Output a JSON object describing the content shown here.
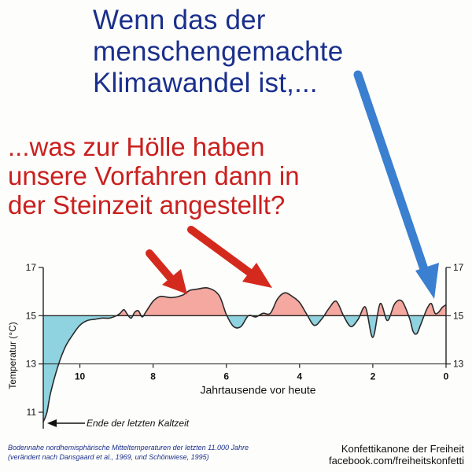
{
  "headline_top": [
    "Wenn das der",
    "menschengemachte",
    "Klimawandel ist,..."
  ],
  "headline_bottom": [
    "...was zur Hölle haben",
    "unsere Vorfahren dann in",
    "der Steinzeit angestellt?"
  ],
  "caption": [
    "Bodennahe nordhemisphärische Mitteltemperaturen der letzten 11.000 Jahre",
    "(verändert nach Dansgaard et al., 1969, und Schönwiese, 1995)"
  ],
  "credit": [
    "Konfettikanone der Freiheit",
    "facebook.com/freiheitskonfetti"
  ],
  "colors": {
    "warm": "#f4a8a0",
    "cold": "#8fd3e0",
    "blue_text": "#1a2f8c",
    "red_text": "#c9201f",
    "arrow_red": "#d42a1e",
    "arrow_blue": "#3a7fd0"
  },
  "chart_data": {
    "type": "area",
    "title": "",
    "xlabel": "Jahrtausende vor heute",
    "ylabel": "Temperatur (°C)",
    "x_reversed": true,
    "xlim": [
      11,
      0
    ],
    "ylim": [
      11,
      17
    ],
    "baseline": 15,
    "x_ticks": [
      "10",
      "8",
      "6",
      "4",
      "2",
      "0"
    ],
    "y_ticks_left": [
      "17",
      "15",
      "13",
      "11"
    ],
    "y_ticks_right": [
      "17",
      "15",
      "13"
    ],
    "annotation": "Ende der letzten Kaltzeit",
    "series": [
      {
        "x": [
          11,
          10.9,
          10.8,
          10.6,
          10.4,
          10.2,
          10.0,
          9.8,
          9.6,
          9.4,
          9.2,
          9.0,
          8.9,
          8.8,
          8.7,
          8.6,
          8.5,
          8.4,
          8.3,
          8.2,
          8.0,
          7.8,
          7.5,
          7.2,
          7.0,
          6.8,
          6.5,
          6.2,
          6.0,
          5.8,
          5.6,
          5.4,
          5.2,
          5.0,
          4.8,
          4.6,
          4.4,
          4.2,
          4.0,
          3.8,
          3.6,
          3.4,
          3.2,
          3.0,
          2.8,
          2.6,
          2.4,
          2.2,
          2.0,
          1.8,
          1.6,
          1.4,
          1.2,
          1.0,
          0.9,
          0.8,
          0.7,
          0.6,
          0.5,
          0.4,
          0.3,
          0.2,
          0.1,
          0.0
        ],
        "y": [
          10.6,
          11.0,
          11.8,
          12.9,
          13.7,
          14.2,
          14.6,
          14.8,
          14.85,
          14.9,
          14.9,
          15.0,
          15.1,
          15.25,
          15.05,
          14.9,
          15.15,
          15.2,
          14.95,
          15.15,
          15.6,
          15.8,
          15.75,
          15.85,
          16.05,
          16.1,
          16.15,
          15.85,
          15.05,
          14.55,
          14.55,
          15.0,
          14.95,
          15.1,
          15.1,
          15.7,
          15.95,
          15.8,
          15.55,
          15.05,
          14.6,
          14.85,
          15.3,
          15.6,
          15.0,
          14.55,
          14.85,
          15.35,
          14.1,
          15.5,
          14.8,
          15.5,
          15.6,
          14.9,
          14.35,
          14.25,
          14.6,
          15.0,
          15.35,
          15.5,
          15.1,
          15.15,
          15.35,
          15.45
        ]
      }
    ]
  }
}
